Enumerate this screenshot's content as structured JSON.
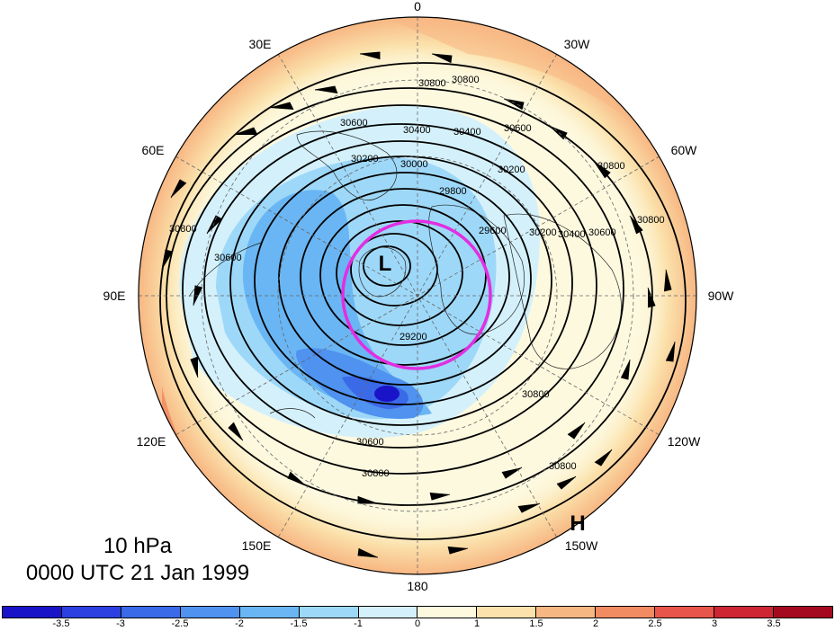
{
  "map": {
    "level_label": "10 hPa",
    "time_label": "0000 UTC 21 Jan 1999",
    "longitude_labels": [
      {
        "id": "0",
        "text": "0"
      },
      {
        "id": "30W",
        "text": "30W"
      },
      {
        "id": "60W",
        "text": "60W"
      },
      {
        "id": "90W",
        "text": "90W"
      },
      {
        "id": "120W",
        "text": "120W"
      },
      {
        "id": "150W",
        "text": "150W"
      },
      {
        "id": "180",
        "text": "180"
      },
      {
        "id": "150E",
        "text": "150E"
      },
      {
        "id": "120E",
        "text": "120E"
      },
      {
        "id": "90E",
        "text": "90E"
      },
      {
        "id": "60E",
        "text": "60E"
      },
      {
        "id": "30E",
        "text": "30E"
      }
    ],
    "pressure_centers": [
      {
        "id": "low",
        "text": "L"
      },
      {
        "id": "high",
        "text": "H"
      }
    ],
    "contour_labels": [
      "30800",
      "30600",
      "30400",
      "30200",
      "30000",
      "29800",
      "29600",
      "29200"
    ],
    "colorbar": {
      "ticks": [
        "-3.5",
        "-3",
        "-2.5",
        "-2",
        "-1.5",
        "-1",
        "0",
        "1",
        "1.5",
        "2",
        "2.5",
        "3",
        "3.5"
      ],
      "colors": [
        "#1a14c8",
        "#2c3fe0",
        "#3b6ae8",
        "#4f92ef",
        "#6ab6f4",
        "#9ed8f8",
        "#d4f1fb",
        "#fdf9df",
        "#fbe1ab",
        "#f7b783",
        "#f08b62",
        "#e8554a",
        "#cf2633",
        "#a5091f"
      ]
    },
    "highlight_circle_color": "#e22ee2"
  }
}
